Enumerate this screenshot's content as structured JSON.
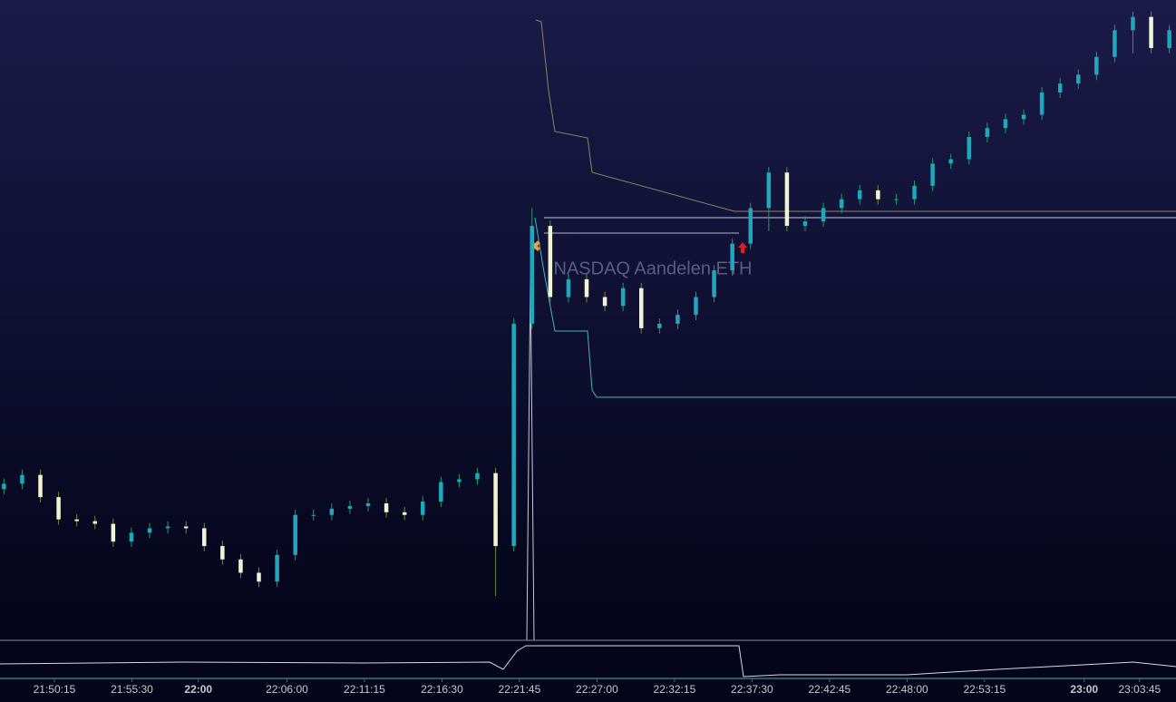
{
  "chart_data": {
    "type": "candlestick",
    "watermark": "NASDAQ Aandelen ETH",
    "up_color": "#1fa7bd",
    "down_color": "#f2f2d4",
    "xlim": [
      78394,
      83173
    ],
    "ylim": [
      0,
      720
    ],
    "xticks": [
      {
        "value": 78615,
        "label": "21:50:15"
      },
      {
        "value": 78930,
        "label": "21:55:30"
      },
      {
        "value": 79200,
        "label": "22:00"
      },
      {
        "value": 79560,
        "label": "22:06:00"
      },
      {
        "value": 79875,
        "label": "22:11:15"
      },
      {
        "value": 80190,
        "label": "22:16:30"
      },
      {
        "value": 80505,
        "label": "22:21:45"
      },
      {
        "value": 80820,
        "label": "22:27:00"
      },
      {
        "value": 81135,
        "label": "22:32:15"
      },
      {
        "value": 81450,
        "label": "22:37:30"
      },
      {
        "value": 81765,
        "label": "22:42:45"
      },
      {
        "value": 82080,
        "label": "22:48:00"
      },
      {
        "value": 82395,
        "label": "22:53:15"
      },
      {
        "value": 82800,
        "label": "23:00"
      },
      {
        "value": 83025,
        "label": "23:03:45"
      }
    ],
    "x": [
      78410,
      78484,
      78558,
      78632,
      78706,
      78780,
      78854,
      78928,
      79002,
      79076,
      79150,
      79224,
      79298,
      79372,
      79446,
      79520,
      79594,
      79668,
      79742,
      79816,
      79890,
      79964,
      80038,
      80112,
      80186,
      80260,
      80334,
      80408,
      80482,
      80556,
      80630,
      80704,
      80778,
      80852,
      80926,
      81000,
      81074,
      81148,
      81222,
      81296,
      81370,
      81444,
      81518,
      81592,
      81666,
      81740,
      81814,
      81888,
      81962,
      82036,
      82110,
      82184,
      82258,
      82332,
      82406,
      82480,
      82554,
      82628,
      82702,
      82776,
      82850,
      82924,
      82998,
      83072,
      83146
    ],
    "open": [
      170,
      176,
      186,
      161,
      136,
      134,
      131,
      111,
      121,
      126,
      128,
      126,
      106,
      91,
      76,
      66,
      96,
      141,
      141,
      148,
      151,
      154,
      144,
      141,
      156,
      178,
      181,
      188,
      106,
      356,
      466,
      386,
      406,
      386,
      376,
      396,
      351,
      356,
      366,
      386,
      416,
      446,
      486,
      526,
      466,
      471,
      486,
      496,
      506,
      496,
      496,
      511,
      536,
      541,
      566,
      576,
      586,
      591,
      616,
      626,
      636,
      656,
      686,
      701,
      666
    ],
    "high": [
      182,
      192,
      192,
      167,
      142,
      140,
      137,
      127,
      132,
      134,
      134,
      132,
      112,
      97,
      82,
      102,
      147,
      147,
      154,
      157,
      160,
      160,
      150,
      162,
      184,
      187,
      194,
      194,
      362,
      486,
      472,
      412,
      412,
      392,
      402,
      402,
      362,
      372,
      392,
      422,
      452,
      492,
      532,
      532,
      477,
      492,
      502,
      512,
      512,
      502,
      517,
      542,
      547,
      572,
      582,
      592,
      597,
      622,
      632,
      642,
      662,
      692,
      707,
      707,
      692
    ],
    "low": [
      164,
      170,
      155,
      130,
      128,
      125,
      105,
      105,
      115,
      120,
      120,
      100,
      85,
      70,
      60,
      60,
      90,
      135,
      135,
      142,
      145,
      138,
      135,
      135,
      150,
      172,
      175,
      50,
      100,
      350,
      380,
      380,
      380,
      370,
      370,
      345,
      345,
      350,
      360,
      380,
      410,
      440,
      460,
      460,
      460,
      465,
      480,
      490,
      490,
      490,
      490,
      505,
      530,
      535,
      560,
      570,
      580,
      585,
      610,
      620,
      630,
      650,
      660,
      660,
      660
    ],
    "close": [
      176,
      186,
      161,
      136,
      134,
      131,
      111,
      121,
      126,
      128,
      126,
      106,
      91,
      76,
      66,
      96,
      141,
      141,
      148,
      151,
      154,
      144,
      141,
      156,
      178,
      181,
      188,
      106,
      356,
      466,
      386,
      406,
      386,
      376,
      396,
      351,
      356,
      366,
      386,
      416,
      446,
      486,
      526,
      466,
      471,
      486,
      496,
      506,
      496,
      496,
      511,
      536,
      541,
      566,
      576,
      586,
      591,
      616,
      626,
      636,
      656,
      686,
      701,
      666,
      686
    ]
  }
}
